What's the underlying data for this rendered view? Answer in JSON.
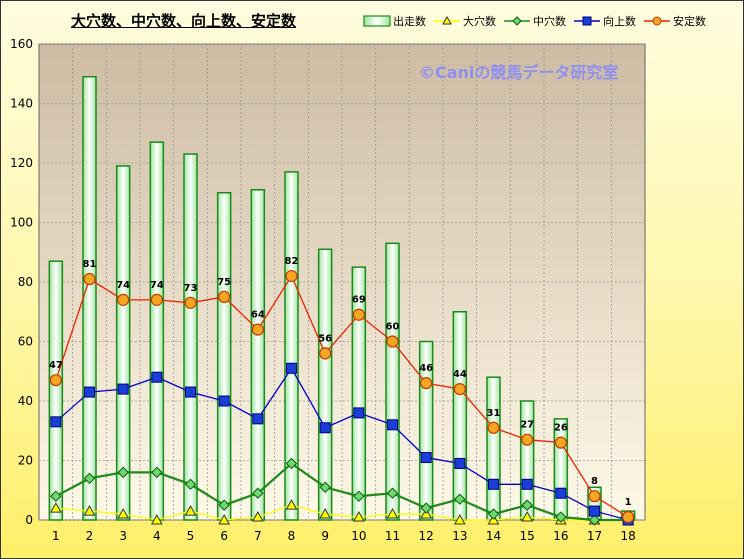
{
  "title": "大穴数、中穴数、向上数、安定数",
  "watermark": "©Caniの競馬データ研究室",
  "chart_data": {
    "type": "bar",
    "categories": [
      "1",
      "2",
      "3",
      "4",
      "5",
      "6",
      "7",
      "8",
      "9",
      "10",
      "11",
      "12",
      "13",
      "14",
      "15",
      "16",
      "17",
      "18"
    ],
    "ylim": [
      0,
      160
    ],
    "yticks": [
      0,
      20,
      40,
      60,
      80,
      100,
      120,
      140,
      160
    ],
    "grid": true,
    "legend_position": "top-right",
    "series": [
      {
        "name": "出走数",
        "kind": "bar",
        "color": "#1a8a1a",
        "values": [
          87,
          149,
          119,
          127,
          123,
          110,
          111,
          117,
          91,
          85,
          93,
          60,
          70,
          48,
          40,
          34,
          11,
          3
        ]
      },
      {
        "name": "大穴数",
        "kind": "line",
        "marker": "triangle",
        "color": "#ffff00",
        "values": [
          4,
          3,
          2,
          0,
          3,
          0,
          1,
          5,
          2,
          1,
          2,
          2,
          0,
          0,
          1,
          0,
          0,
          0
        ]
      },
      {
        "name": "中穴数",
        "kind": "line",
        "marker": "diamond",
        "color": "#1a8a1a",
        "values": [
          8,
          14,
          16,
          16,
          12,
          5,
          9,
          19,
          11,
          8,
          9,
          4,
          7,
          2,
          5,
          1,
          0,
          0
        ]
      },
      {
        "name": "向上数",
        "kind": "line",
        "marker": "square",
        "color": "#0000cc",
        "values": [
          33,
          43,
          44,
          48,
          43,
          40,
          34,
          51,
          31,
          36,
          32,
          21,
          19,
          12,
          12,
          9,
          3,
          0
        ]
      },
      {
        "name": "安定数",
        "kind": "line",
        "marker": "circle",
        "color": "#ee2200",
        "values": [
          47,
          81,
          74,
          74,
          73,
          75,
          64,
          82,
          56,
          69,
          60,
          46,
          44,
          31,
          27,
          26,
          8,
          1
        ]
      }
    ],
    "data_labels": [
      "47",
      "81",
      "74",
      "74",
      "73",
      "75",
      "64",
      "82",
      "56",
      "69",
      "60",
      "46",
      "44",
      "31",
      "27",
      "26",
      "8",
      "1"
    ]
  }
}
